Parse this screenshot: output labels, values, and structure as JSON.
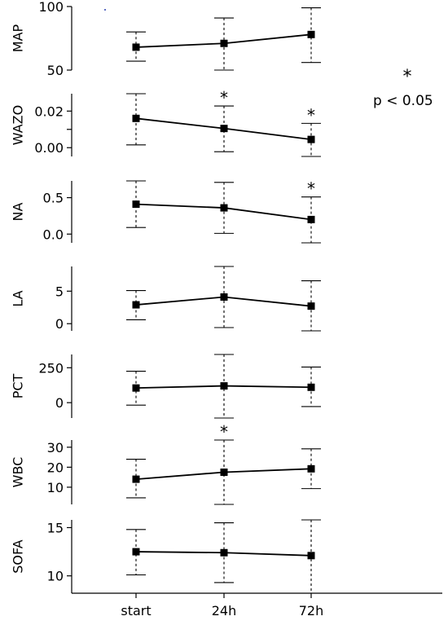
{
  "legend_note": {
    "symbol": "*",
    "text": "p < 0.05"
  },
  "chart_data": [
    {
      "type": "line",
      "ylabel": "MAP",
      "categories": [
        "start",
        "24h",
        "72h"
      ],
      "values": [
        68,
        71,
        78
      ],
      "err_low": [
        57,
        50,
        56
      ],
      "err_high": [
        80,
        91,
        99
      ],
      "ylim": [
        50,
        100
      ],
      "yticks": [
        50,
        100
      ],
      "ytick_labels": [
        "50",
        "100"
      ],
      "significant": [
        false,
        false,
        false
      ]
    },
    {
      "type": "line",
      "ylabel": "WAZO",
      "categories": [
        "start",
        "24h",
        "72h"
      ],
      "values": [
        0.016,
        0.0105,
        0.0045
      ],
      "err_low": [
        0.0015,
        -0.0022,
        -0.0048
      ],
      "err_high": [
        0.0295,
        0.0228,
        0.0133
      ],
      "ylim": [
        -0.0048,
        0.0295
      ],
      "yticks": [
        0,
        0.01,
        0.02
      ],
      "ytick_labels": [
        "0.00",
        "",
        "0.02"
      ],
      "significant": [
        false,
        true,
        true
      ]
    },
    {
      "type": "line",
      "ylabel": "NA",
      "categories": [
        "start",
        "24h",
        "72h"
      ],
      "values": [
        0.41,
        0.36,
        0.2
      ],
      "err_low": [
        0.09,
        0.01,
        -0.12
      ],
      "err_high": [
        0.73,
        0.71,
        0.51
      ],
      "ylim": [
        -0.12,
        0.73
      ],
      "yticks": [
        0,
        0.5
      ],
      "ytick_labels": [
        "0.0",
        "0.5"
      ],
      "significant": [
        false,
        false,
        true
      ]
    },
    {
      "type": "line",
      "ylabel": "LA",
      "categories": [
        "start",
        "24h",
        "72h"
      ],
      "values": [
        2.9,
        4.1,
        2.7
      ],
      "err_low": [
        0.6,
        -0.6,
        -1.1
      ],
      "err_high": [
        5.1,
        8.8,
        6.6
      ],
      "ylim": [
        -1.1,
        8.8
      ],
      "yticks": [
        0,
        5
      ],
      "ytick_labels": [
        "0",
        "5"
      ],
      "significant": [
        false,
        false,
        false
      ]
    },
    {
      "type": "line",
      "ylabel": "PCT",
      "categories": [
        "start",
        "24h",
        "72h"
      ],
      "values": [
        105,
        120,
        110
      ],
      "err_low": [
        -18,
        -110,
        -28
      ],
      "err_high": [
        225,
        345,
        255
      ],
      "ylim": [
        -110,
        345
      ],
      "yticks": [
        0,
        250
      ],
      "ytick_labels": [
        "0",
        "250"
      ],
      "significant": [
        false,
        false,
        false
      ]
    },
    {
      "type": "line",
      "ylabel": "WBC",
      "categories": [
        "start",
        "24h",
        "72h"
      ],
      "values": [
        14,
        17.5,
        19.2
      ],
      "err_low": [
        4.7,
        1.4,
        9.3
      ],
      "err_high": [
        24,
        33.6,
        29.2
      ],
      "ylim": [
        1.4,
        33.6
      ],
      "yticks": [
        10,
        20,
        30
      ],
      "ytick_labels": [
        "10",
        "20",
        "30"
      ],
      "significant": [
        false,
        true,
        false
      ]
    },
    {
      "type": "line",
      "ylabel": "SOFA",
      "categories": [
        "start",
        "24h",
        "72h"
      ],
      "values": [
        12.5,
        12.4,
        12.1
      ],
      "err_low": [
        10.1,
        9.3,
        8.2
      ],
      "err_high": [
        14.8,
        15.5,
        15.8
      ],
      "ylim": [
        8.2,
        15.8
      ],
      "yticks": [
        10,
        15
      ],
      "ytick_labels": [
        "10",
        "15"
      ],
      "significant": [
        false,
        false,
        false
      ]
    }
  ]
}
